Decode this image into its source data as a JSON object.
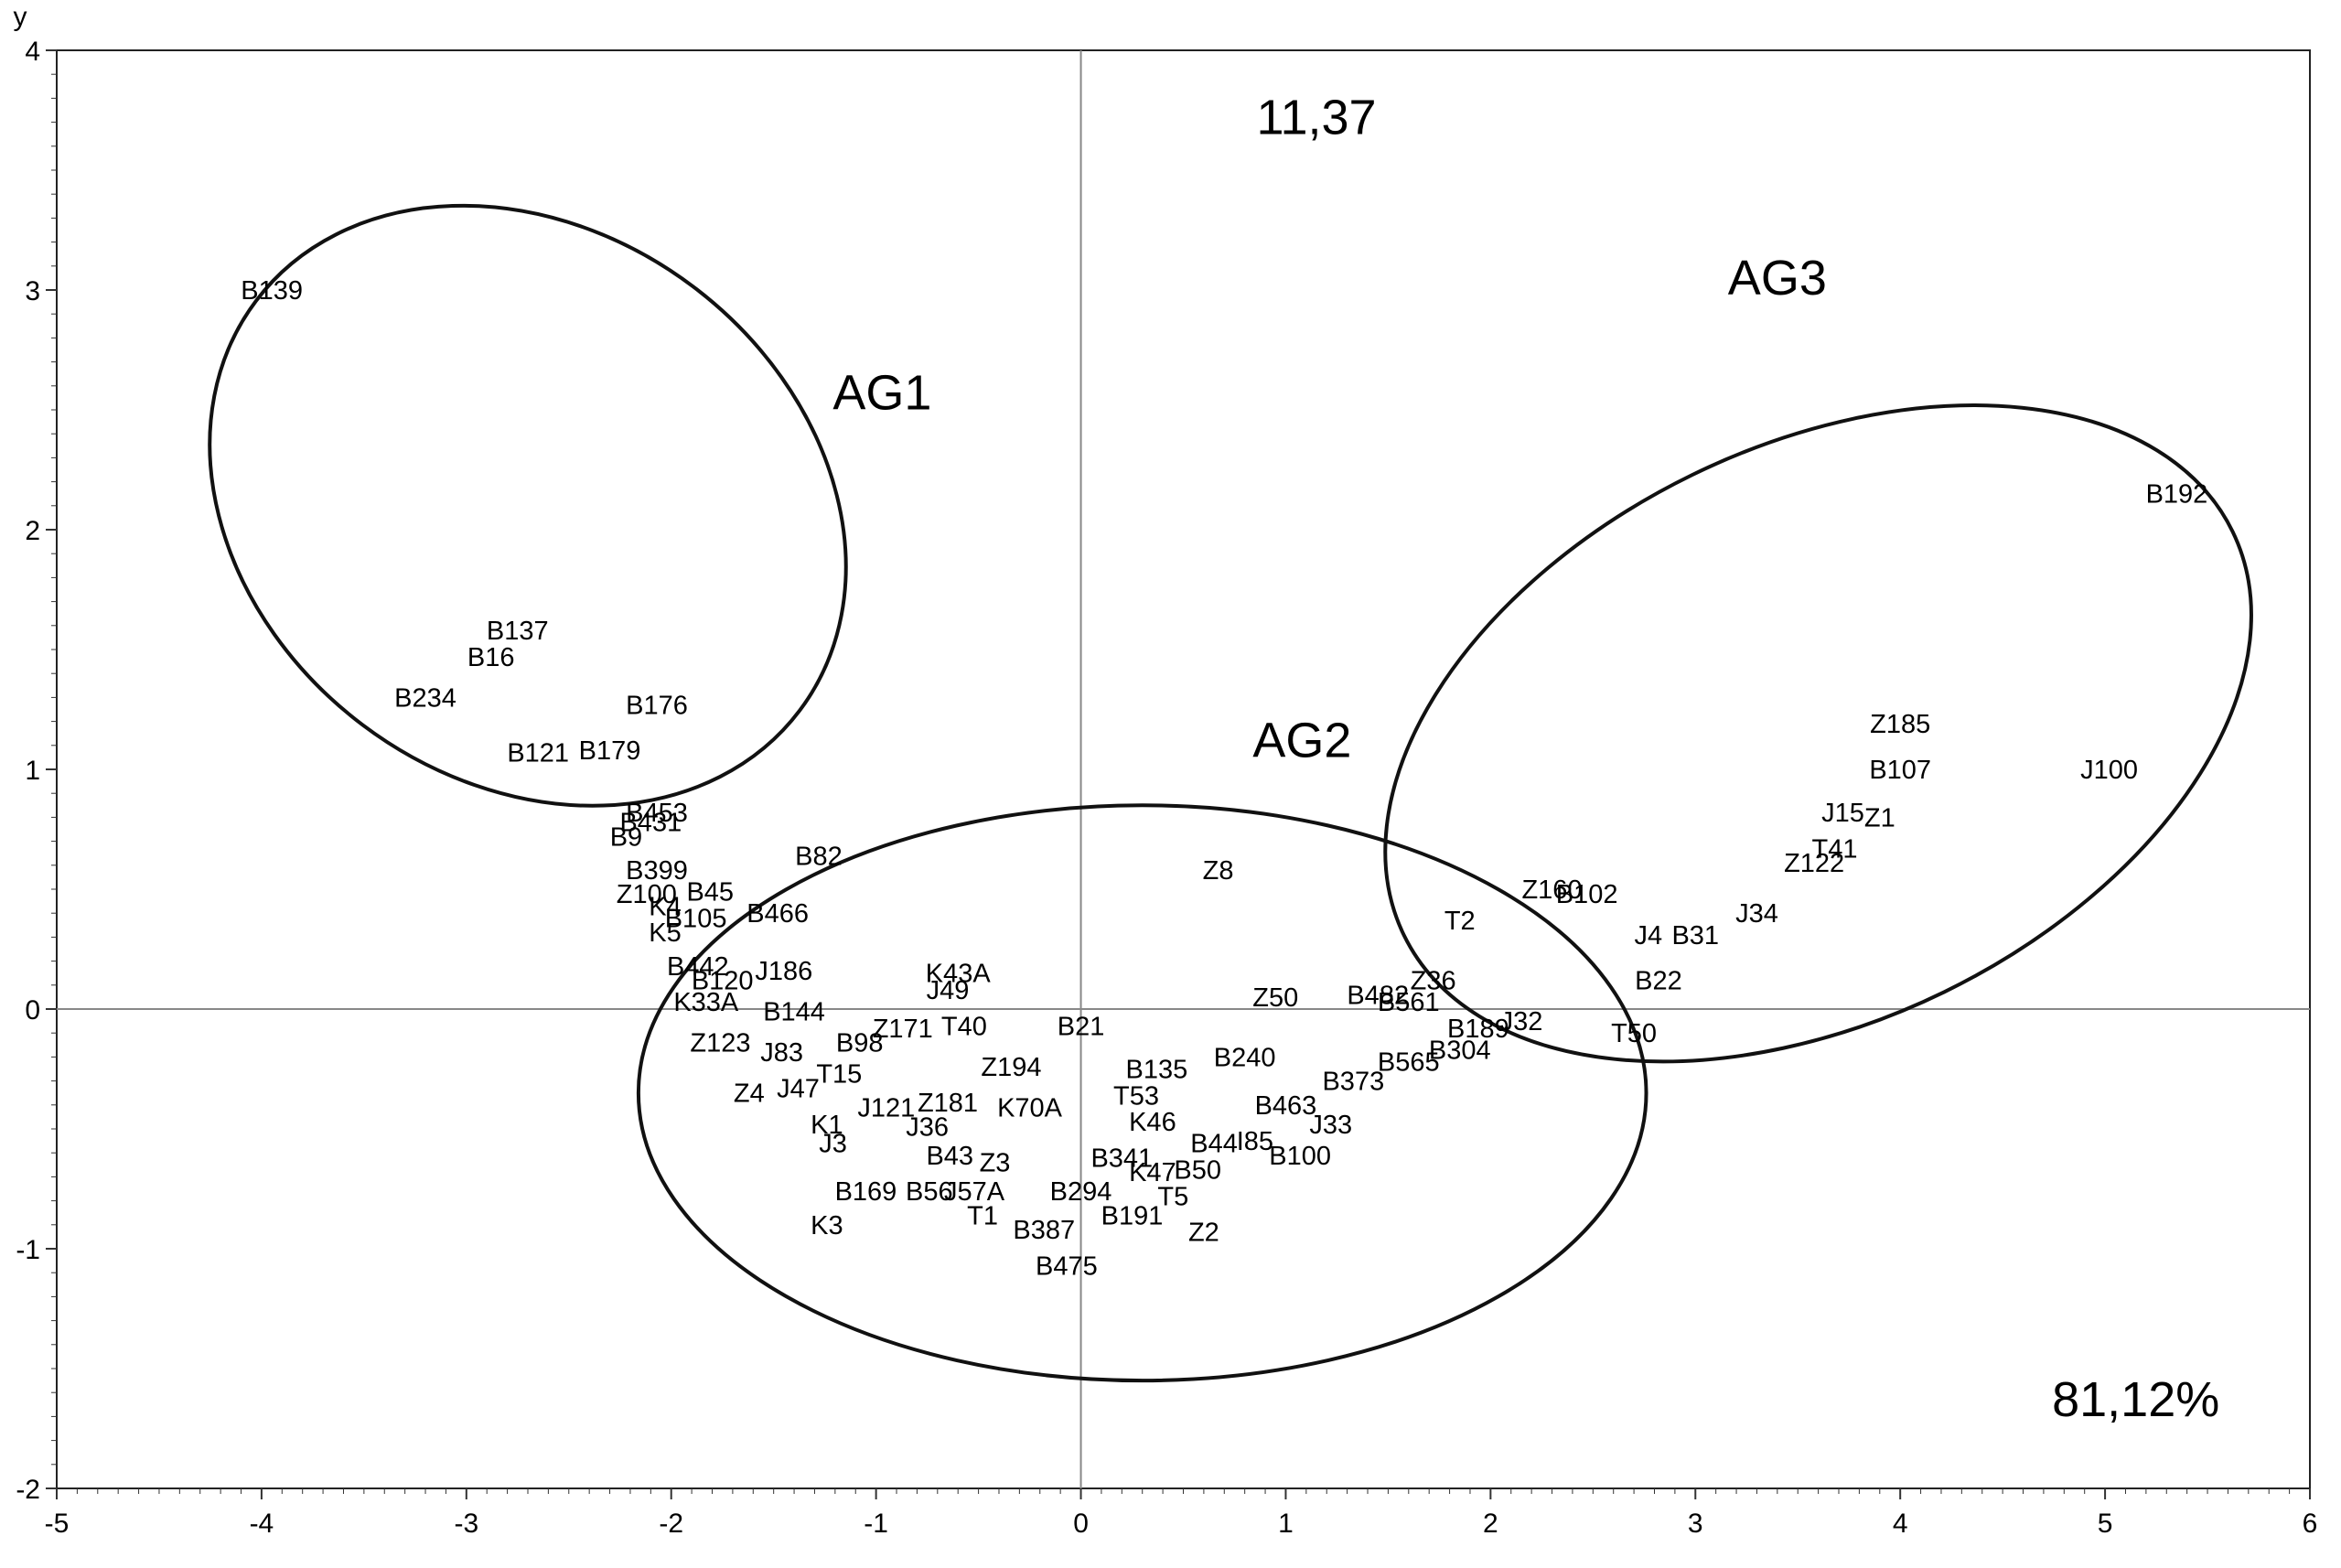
{
  "chart_data": {
    "type": "scatter",
    "title": "",
    "xlabel": "",
    "ylabel": "y",
    "xlim": [
      -5,
      6
    ],
    "ylim": [
      -2,
      4
    ],
    "x_ticks": [
      "-5",
      "-4",
      "-3",
      "-2",
      "-1",
      "0",
      "1",
      "2",
      "3",
      "4",
      "5",
      "6"
    ],
    "y_ticks": [
      "-2",
      "-1",
      "0",
      "1",
      "2",
      "3",
      "4"
    ],
    "grid": false,
    "reference_lines": {
      "x": 0,
      "y": 0
    },
    "annotations": [
      {
        "text": "11,37",
        "x": 1.15,
        "y": 3.72
      },
      {
        "text": "81,12%",
        "x": 5.15,
        "y": -1.63
      },
      {
        "text": "AG1",
        "x": -0.97,
        "y": 2.57
      },
      {
        "text": "AG2",
        "x": 1.08,
        "y": 1.12
      },
      {
        "text": "AG3",
        "x": 3.4,
        "y": 3.05
      }
    ],
    "groups": [
      {
        "name": "AG1",
        "center": [
          -2.7,
          2.1
        ],
        "rx": 1.34,
        "ry": 1.42,
        "rotation_deg": -53
      },
      {
        "name": "AG2",
        "center": [
          0.3,
          -0.35
        ],
        "rx": 2.46,
        "ry": 1.2,
        "rotation_deg": 0
      },
      {
        "name": "AG3",
        "center": [
          3.6,
          1.15
        ],
        "rx": 2.25,
        "ry": 1.2,
        "rotation_deg": -26
      }
    ],
    "points": [
      {
        "label": "B139",
        "x": -3.95,
        "y": 3.0
      },
      {
        "label": "B192",
        "x": 5.35,
        "y": 2.15
      },
      {
        "label": "B137",
        "x": -2.75,
        "y": 1.58
      },
      {
        "label": "B16",
        "x": -2.88,
        "y": 1.47
      },
      {
        "label": "B234",
        "x": -3.2,
        "y": 1.3
      },
      {
        "label": "B176",
        "x": -2.07,
        "y": 1.27
      },
      {
        "label": "B121",
        "x": -2.65,
        "y": 1.07
      },
      {
        "label": "B179",
        "x": -2.3,
        "y": 1.08
      },
      {
        "label": "B453",
        "x": -2.07,
        "y": 0.82
      },
      {
        "label": "B431",
        "x": -2.1,
        "y": 0.78
      },
      {
        "label": "B9",
        "x": -2.22,
        "y": 0.72
      },
      {
        "label": "B399",
        "x": -2.07,
        "y": 0.58
      },
      {
        "label": "B82",
        "x": -1.28,
        "y": 0.64
      },
      {
        "label": "Z100",
        "x": -2.12,
        "y": 0.48
      },
      {
        "label": "B45",
        "x": -1.81,
        "y": 0.49
      },
      {
        "label": "K4",
        "x": -2.03,
        "y": 0.43
      },
      {
        "label": "B105",
        "x": -1.88,
        "y": 0.38
      },
      {
        "label": "B466",
        "x": -1.48,
        "y": 0.4
      },
      {
        "label": "K5",
        "x": -2.03,
        "y": 0.32
      },
      {
        "label": "K43A",
        "x": -0.6,
        "y": 0.15
      },
      {
        "label": "J49",
        "x": -0.65,
        "y": 0.08
      },
      {
        "label": "B442",
        "x": -1.87,
        "y": 0.18
      },
      {
        "label": "J186",
        "x": -1.45,
        "y": 0.16
      },
      {
        "label": "B120",
        "x": -1.75,
        "y": 0.12
      },
      {
        "label": "K33A",
        "x": -1.83,
        "y": 0.03
      },
      {
        "label": "B144",
        "x": -1.4,
        "y": -0.01
      },
      {
        "label": "Z123",
        "x": -1.76,
        "y": -0.14
      },
      {
        "label": "J83",
        "x": -1.46,
        "y": -0.18
      },
      {
        "label": "B98",
        "x": -1.08,
        "y": -0.14
      },
      {
        "label": "Z171",
        "x": -0.87,
        "y": -0.08
      },
      {
        "label": "T40",
        "x": -0.57,
        "y": -0.07
      },
      {
        "label": "B21",
        "x": 0.0,
        "y": -0.07
      },
      {
        "label": "T15",
        "x": -1.18,
        "y": -0.27
      },
      {
        "label": "Z194",
        "x": -0.34,
        "y": -0.24
      },
      {
        "label": "B135",
        "x": 0.37,
        "y": -0.25
      },
      {
        "label": "B240",
        "x": 0.8,
        "y": -0.2
      },
      {
        "label": "Z4",
        "x": -1.62,
        "y": -0.35
      },
      {
        "label": "J47",
        "x": -1.38,
        "y": -0.33
      },
      {
        "label": "T53",
        "x": 0.27,
        "y": -0.36
      },
      {
        "label": "J121",
        "x": -0.95,
        "y": -0.41
      },
      {
        "label": "Z181",
        "x": -0.65,
        "y": -0.39
      },
      {
        "label": "K70A",
        "x": -0.25,
        "y": -0.41
      },
      {
        "label": "B463",
        "x": 1.0,
        "y": -0.4
      },
      {
        "label": "B373",
        "x": 1.33,
        "y": -0.3
      },
      {
        "label": "K1",
        "x": -1.24,
        "y": -0.48
      },
      {
        "label": "J36",
        "x": -0.75,
        "y": -0.49
      },
      {
        "label": "K46",
        "x": 0.35,
        "y": -0.47
      },
      {
        "label": "J33",
        "x": 1.22,
        "y": -0.48
      },
      {
        "label": "J3",
        "x": -1.21,
        "y": -0.56
      },
      {
        "label": "B44",
        "x": 0.65,
        "y": -0.56
      },
      {
        "label": "I85",
        "x": 0.85,
        "y": -0.55
      },
      {
        "label": "B100",
        "x": 1.07,
        "y": -0.61
      },
      {
        "label": "B43",
        "x": -0.64,
        "y": -0.61
      },
      {
        "label": "Z3",
        "x": -0.42,
        "y": -0.64
      },
      {
        "label": "B341",
        "x": 0.2,
        "y": -0.62
      },
      {
        "label": "K47",
        "x": 0.35,
        "y": -0.68
      },
      {
        "label": "B50",
        "x": 0.57,
        "y": -0.67
      },
      {
        "label": "B169",
        "x": -1.05,
        "y": -0.76
      },
      {
        "label": "B56",
        "x": -0.74,
        "y": -0.76
      },
      {
        "label": "J57A",
        "x": -0.52,
        "y": -0.76
      },
      {
        "label": "B294",
        "x": 0.0,
        "y": -0.76
      },
      {
        "label": "T5",
        "x": 0.45,
        "y": -0.78
      },
      {
        "label": "T1",
        "x": -0.48,
        "y": -0.86
      },
      {
        "label": "B191",
        "x": 0.25,
        "y": -0.86
      },
      {
        "label": "K3",
        "x": -1.24,
        "y": -0.9
      },
      {
        "label": "B387",
        "x": -0.18,
        "y": -0.92
      },
      {
        "label": "Z2",
        "x": 0.6,
        "y": -0.93
      },
      {
        "label": "B475",
        "x": -0.07,
        "y": -1.07
      },
      {
        "label": "Z8",
        "x": 0.67,
        "y": 0.58
      },
      {
        "label": "Z50",
        "x": 0.95,
        "y": 0.05
      },
      {
        "label": "B482",
        "x": 1.45,
        "y": 0.06
      },
      {
        "label": "Z36",
        "x": 1.72,
        "y": 0.12
      },
      {
        "label": "B561",
        "x": 1.6,
        "y": 0.03
      },
      {
        "label": "T2",
        "x": 1.85,
        "y": 0.37
      },
      {
        "label": "B189",
        "x": 1.94,
        "y": -0.08
      },
      {
        "label": "J32",
        "x": 2.15,
        "y": -0.05
      },
      {
        "label": "B304",
        "x": 1.85,
        "y": -0.17
      },
      {
        "label": "B565",
        "x": 1.6,
        "y": -0.22
      },
      {
        "label": "T50",
        "x": 2.7,
        "y": -0.1
      },
      {
        "label": "Z160",
        "x": 2.3,
        "y": 0.5
      },
      {
        "label": "B102",
        "x": 2.47,
        "y": 0.48
      },
      {
        "label": "J4",
        "x": 2.77,
        "y": 0.31
      },
      {
        "label": "B31",
        "x": 3.0,
        "y": 0.31
      },
      {
        "label": "J34",
        "x": 3.3,
        "y": 0.4
      },
      {
        "label": "B22",
        "x": 2.82,
        "y": 0.12
      },
      {
        "label": "Z122",
        "x": 3.58,
        "y": 0.61
      },
      {
        "label": "T41",
        "x": 3.68,
        "y": 0.67
      },
      {
        "label": "J15",
        "x": 3.72,
        "y": 0.82
      },
      {
        "label": "Z1",
        "x": 3.9,
        "y": 0.8
      },
      {
        "label": "B107",
        "x": 4.0,
        "y": 1.0
      },
      {
        "label": "Z185",
        "x": 4.0,
        "y": 1.19
      },
      {
        "label": "J100",
        "x": 5.02,
        "y": 1.0
      }
    ]
  }
}
